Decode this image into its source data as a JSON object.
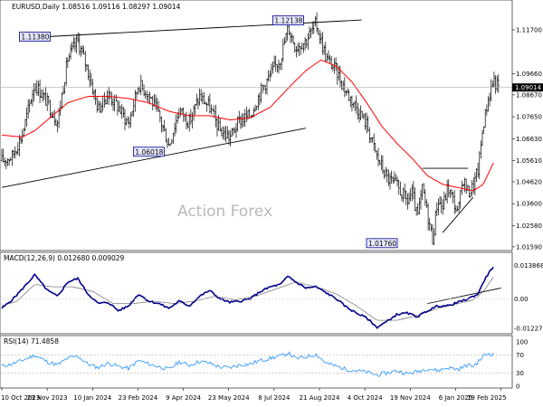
{
  "chart_data": [
    {
      "type": "bar",
      "style": "ohlc",
      "header": "EURUSD,Daily  1.08516 1.09116 1.08297 1.09014",
      "watermark": "Action Forex",
      "ylim": [
        1.015,
        1.125
      ],
      "price_ticks": [
        "1.11700",
        "1.09660",
        "1.08670",
        "1.07650",
        "1.06630",
        "1.05610",
        "1.04620",
        "1.03600",
        "1.02580",
        "1.01590"
      ],
      "last_price": "1.09014",
      "colors": {
        "bars": "#000000",
        "ma": "#ff0000",
        "trendline": "#000000",
        "tag_bg": "#e8e8ff",
        "tag_border": "#00008b",
        "last_price_bg": "#000000"
      },
      "annotations": [
        {
          "label": "1.11380",
          "time": 0.065,
          "price": 1.1138
        },
        {
          "label": "1.12138",
          "time": 0.565,
          "price": 1.1214
        },
        {
          "label": "1.06018",
          "time": 0.29,
          "price": 1.0602
        },
        {
          "label": "1.01760",
          "time": 0.75,
          "price": 1.0176
        }
      ],
      "trendlines": [
        {
          "t1": 0.04,
          "p1": 1.1132,
          "t2": 0.71,
          "p2": 1.1216
        },
        {
          "t1": 0.0,
          "p1": 1.0436,
          "t2": 0.6,
          "p2": 1.0712
        },
        {
          "t1": 0.83,
          "p1": 1.0525,
          "t2": 0.92,
          "p2": 1.0525
        },
        {
          "t1": 0.87,
          "p1": 1.0225,
          "t2": 0.93,
          "p2": 1.039
        }
      ],
      "price_path": [
        [
          0.0,
          1.056
        ],
        [
          0.02,
          1.058
        ],
        [
          0.04,
          1.068
        ],
        [
          0.065,
          1.092
        ],
        [
          0.09,
          1.083
        ],
        [
          0.11,
          1.074
        ],
        [
          0.13,
          1.1035
        ],
        [
          0.15,
          1.112
        ],
        [
          0.17,
          1.098
        ],
        [
          0.19,
          1.08
        ],
        [
          0.21,
          1.087
        ],
        [
          0.23,
          1.081
        ],
        [
          0.25,
          1.073
        ],
        [
          0.27,
          1.092
        ],
        [
          0.29,
          1.087
        ],
        [
          0.31,
          1.077
        ],
        [
          0.33,
          1.063
        ],
        [
          0.35,
          1.08
        ],
        [
          0.37,
          1.074
        ],
        [
          0.39,
          1.086
        ],
        [
          0.41,
          1.081
        ],
        [
          0.43,
          1.07
        ],
        [
          0.45,
          1.067
        ],
        [
          0.47,
          1.075
        ],
        [
          0.49,
          1.077
        ],
        [
          0.51,
          1.088
        ],
        [
          0.53,
          1.096
        ],
        [
          0.55,
          1.104
        ],
        [
          0.565,
          1.118
        ],
        [
          0.58,
          1.109
        ],
        [
          0.6,
          1.112
        ],
        [
          0.62,
          1.12
        ],
        [
          0.64,
          1.104
        ],
        [
          0.66,
          1.098
        ],
        [
          0.68,
          1.088
        ],
        [
          0.7,
          1.081
        ],
        [
          0.72,
          1.073
        ],
        [
          0.74,
          1.058
        ],
        [
          0.76,
          1.048
        ],
        [
          0.78,
          1.044
        ],
        [
          0.8,
          1.037
        ],
        [
          0.81,
          1.041
        ],
        [
          0.82,
          1.029
        ],
        [
          0.83,
          1.043
        ],
        [
          0.84,
          1.031
        ],
        [
          0.85,
          1.0195
        ],
        [
          0.86,
          1.038
        ],
        [
          0.87,
          1.034
        ],
        [
          0.88,
          1.044
        ],
        [
          0.89,
          1.038
        ],
        [
          0.9,
          1.031
        ],
        [
          0.91,
          1.048
        ],
        [
          0.92,
          1.041
        ],
        [
          0.93,
          1.044
        ],
        [
          0.94,
          1.052
        ],
        [
          0.95,
          1.073
        ],
        [
          0.96,
          1.085
        ],
        [
          0.97,
          1.094
        ],
        [
          0.98,
          1.09
        ]
      ],
      "ma_path": [
        [
          0.0,
          1.068
        ],
        [
          0.04,
          1.067
        ],
        [
          0.065,
          1.07
        ],
        [
          0.09,
          1.075
        ],
        [
          0.13,
          1.083
        ],
        [
          0.17,
          1.086
        ],
        [
          0.21,
          1.086
        ],
        [
          0.25,
          1.085
        ],
        [
          0.29,
          1.083
        ],
        [
          0.33,
          1.079
        ],
        [
          0.37,
          1.077
        ],
        [
          0.41,
          1.077
        ],
        [
          0.45,
          1.075
        ],
        [
          0.49,
          1.076
        ],
        [
          0.53,
          1.081
        ],
        [
          0.57,
          1.091
        ],
        [
          0.6,
          1.098
        ],
        [
          0.63,
          1.103
        ],
        [
          0.66,
          1.1
        ],
        [
          0.69,
          1.093
        ],
        [
          0.72,
          1.083
        ],
        [
          0.75,
          1.072
        ],
        [
          0.78,
          1.064
        ],
        [
          0.81,
          1.057
        ],
        [
          0.84,
          1.049
        ],
        [
          0.87,
          1.045
        ],
        [
          0.89,
          1.044
        ],
        [
          0.91,
          1.043
        ],
        [
          0.93,
          1.042
        ],
        [
          0.95,
          1.045
        ],
        [
          0.97,
          1.055
        ]
      ]
    },
    {
      "type": "line",
      "header": "MACD(12,26,9) 0.012680 0.009029",
      "ylim": [
        -0.0135,
        0.0145
      ],
      "ticks": [
        "0.013868",
        "0.00",
        "-0.012275"
      ],
      "colors": {
        "macd": "#00008b",
        "signal": "#808080",
        "trendline": "#000000"
      },
      "trendline": {
        "t1": 0.84,
        "v1": -0.002,
        "t2": 0.985,
        "v2": 0.0045
      },
      "macd_path": [
        [
          0.0,
          -0.004
        ],
        [
          0.02,
          -0.0005
        ],
        [
          0.04,
          0.004
        ],
        [
          0.065,
          0.01
        ],
        [
          0.09,
          0.0035
        ],
        [
          0.11,
          0.001
        ],
        [
          0.13,
          0.007
        ],
        [
          0.15,
          0.0085
        ],
        [
          0.17,
          0.002
        ],
        [
          0.19,
          -0.002
        ],
        [
          0.21,
          -0.0015
        ],
        [
          0.23,
          -0.005
        ],
        [
          0.25,
          -0.003
        ],
        [
          0.27,
          0.002
        ],
        [
          0.29,
          -0.001
        ],
        [
          0.31,
          -0.002
        ],
        [
          0.33,
          -0.004
        ],
        [
          0.35,
          -0.001
        ],
        [
          0.37,
          -0.003
        ],
        [
          0.39,
          0.001
        ],
        [
          0.41,
          0.0035
        ],
        [
          0.43,
          0.0
        ],
        [
          0.45,
          -0.0015
        ],
        [
          0.47,
          -0.001
        ],
        [
          0.49,
          0.0
        ],
        [
          0.51,
          0.003
        ],
        [
          0.53,
          0.005
        ],
        [
          0.55,
          0.006
        ],
        [
          0.565,
          0.0095
        ],
        [
          0.58,
          0.007
        ],
        [
          0.6,
          0.0045
        ],
        [
          0.62,
          0.005
        ],
        [
          0.64,
          0.0025
        ],
        [
          0.66,
          0.0
        ],
        [
          0.68,
          -0.0035
        ],
        [
          0.7,
          -0.006
        ],
        [
          0.72,
          -0.008
        ],
        [
          0.74,
          -0.012
        ],
        [
          0.76,
          -0.0095
        ],
        [
          0.78,
          -0.0065
        ],
        [
          0.8,
          -0.006
        ],
        [
          0.82,
          -0.0075
        ],
        [
          0.84,
          -0.005
        ],
        [
          0.86,
          -0.003
        ],
        [
          0.88,
          -0.003
        ],
        [
          0.9,
          -0.0015
        ],
        [
          0.92,
          0.0
        ],
        [
          0.94,
          0.002
        ],
        [
          0.95,
          0.007
        ],
        [
          0.96,
          0.0105
        ],
        [
          0.97,
          0.0135
        ]
      ],
      "signal_path": [
        [
          0.0,
          -0.003
        ],
        [
          0.03,
          -0.001
        ],
        [
          0.065,
          0.006
        ],
        [
          0.1,
          0.005
        ],
        [
          0.14,
          0.005
        ],
        [
          0.18,
          0.003
        ],
        [
          0.22,
          -0.002
        ],
        [
          0.26,
          -0.002
        ],
        [
          0.3,
          -0.001
        ],
        [
          0.34,
          -0.002
        ],
        [
          0.38,
          -0.001
        ],
        [
          0.42,
          0.001
        ],
        [
          0.46,
          -0.0005
        ],
        [
          0.5,
          0.001
        ],
        [
          0.54,
          0.004
        ],
        [
          0.58,
          0.007
        ],
        [
          0.62,
          0.005
        ],
        [
          0.66,
          0.002
        ],
        [
          0.7,
          -0.003
        ],
        [
          0.74,
          -0.009
        ],
        [
          0.78,
          -0.009
        ],
        [
          0.82,
          -0.007
        ],
        [
          0.86,
          -0.004
        ],
        [
          0.9,
          -0.002
        ],
        [
          0.93,
          -0.0005
        ],
        [
          0.95,
          0.003
        ],
        [
          0.97,
          0.009
        ]
      ]
    },
    {
      "type": "line",
      "header": "RSI(14) 71.4858",
      "ylim": [
        0,
        100
      ],
      "ticks": [
        "100",
        "70",
        "30",
        "0"
      ],
      "levels": [
        70,
        30
      ],
      "colors": {
        "rsi": "#1e90ff",
        "levels": "#a0a0a0"
      },
      "rsi_path": [
        [
          0.0,
          45
        ],
        [
          0.02,
          50
        ],
        [
          0.04,
          58
        ],
        [
          0.065,
          70
        ],
        [
          0.09,
          55
        ],
        [
          0.11,
          48
        ],
        [
          0.13,
          63
        ],
        [
          0.15,
          68
        ],
        [
          0.17,
          50
        ],
        [
          0.19,
          42
        ],
        [
          0.21,
          52
        ],
        [
          0.23,
          45
        ],
        [
          0.25,
          40
        ],
        [
          0.27,
          58
        ],
        [
          0.29,
          50
        ],
        [
          0.31,
          44
        ],
        [
          0.33,
          38
        ],
        [
          0.35,
          55
        ],
        [
          0.37,
          47
        ],
        [
          0.39,
          56
        ],
        [
          0.41,
          52
        ],
        [
          0.43,
          43
        ],
        [
          0.45,
          42
        ],
        [
          0.47,
          48
        ],
        [
          0.49,
          50
        ],
        [
          0.51,
          58
        ],
        [
          0.53,
          63
        ],
        [
          0.55,
          68
        ],
        [
          0.565,
          75
        ],
        [
          0.58,
          62
        ],
        [
          0.6,
          66
        ],
        [
          0.62,
          72
        ],
        [
          0.64,
          52
        ],
        [
          0.66,
          45
        ],
        [
          0.68,
          38
        ],
        [
          0.7,
          35
        ],
        [
          0.72,
          32
        ],
        [
          0.74,
          25
        ],
        [
          0.76,
          30
        ],
        [
          0.78,
          35
        ],
        [
          0.8,
          28
        ],
        [
          0.82,
          33
        ],
        [
          0.84,
          40
        ],
        [
          0.86,
          35
        ],
        [
          0.88,
          42
        ],
        [
          0.9,
          38
        ],
        [
          0.92,
          48
        ],
        [
          0.93,
          45
        ],
        [
          0.94,
          55
        ],
        [
          0.95,
          68
        ],
        [
          0.96,
          74
        ],
        [
          0.97,
          72
        ]
      ]
    }
  ],
  "x_axis": {
    "labels": [
      "10 Oct 2023",
      "23 Nov 2023",
      "10 Jan 2024",
      "23 Feb 2024",
      "9 Apr 2024",
      "23 May 2024",
      "8 Jul 2024",
      "21 Aug 2024",
      "4 Oct 2024",
      "19 Nov 2024",
      "6 Jan 2025",
      "19 Feb 2025"
    ]
  }
}
